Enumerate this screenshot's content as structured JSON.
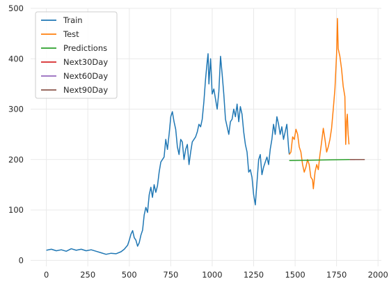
{
  "chart_data": {
    "type": "line",
    "title": "",
    "xlabel": "",
    "ylabel": "",
    "xlim": [
      -95,
      2020
    ],
    "ylim": [
      -12,
      500
    ],
    "x_ticks": [
      0,
      250,
      500,
      750,
      1000,
      1250,
      1500,
      1750,
      2000
    ],
    "y_ticks": [
      0,
      100,
      200,
      300,
      400,
      500
    ],
    "grid": true,
    "legend_position": "top-left",
    "series": [
      {
        "name": "Train",
        "color": "#1f77b4",
        "points": [
          [
            0,
            20
          ],
          [
            30,
            22
          ],
          [
            60,
            19
          ],
          [
            90,
            21
          ],
          [
            120,
            18
          ],
          [
            150,
            23
          ],
          [
            180,
            20
          ],
          [
            210,
            22
          ],
          [
            240,
            19
          ],
          [
            270,
            21
          ],
          [
            300,
            18
          ],
          [
            330,
            15
          ],
          [
            360,
            12
          ],
          [
            390,
            14
          ],
          [
            420,
            13
          ],
          [
            450,
            17
          ],
          [
            470,
            22
          ],
          [
            490,
            30
          ],
          [
            500,
            40
          ],
          [
            510,
            52
          ],
          [
            520,
            59
          ],
          [
            530,
            45
          ],
          [
            540,
            40
          ],
          [
            550,
            28
          ],
          [
            560,
            35
          ],
          [
            570,
            50
          ],
          [
            580,
            60
          ],
          [
            590,
            90
          ],
          [
            600,
            105
          ],
          [
            610,
            95
          ],
          [
            620,
            130
          ],
          [
            630,
            145
          ],
          [
            640,
            125
          ],
          [
            650,
            150
          ],
          [
            660,
            135
          ],
          [
            670,
            148
          ],
          [
            680,
            175
          ],
          [
            690,
            195
          ],
          [
            700,
            200
          ],
          [
            710,
            205
          ],
          [
            720,
            240
          ],
          [
            730,
            220
          ],
          [
            740,
            250
          ],
          [
            750,
            285
          ],
          [
            760,
            295
          ],
          [
            770,
            275
          ],
          [
            780,
            260
          ],
          [
            790,
            225
          ],
          [
            800,
            210
          ],
          [
            810,
            240
          ],
          [
            820,
            235
          ],
          [
            830,
            200
          ],
          [
            840,
            220
          ],
          [
            850,
            230
          ],
          [
            860,
            190
          ],
          [
            870,
            215
          ],
          [
            880,
            235
          ],
          [
            890,
            240
          ],
          [
            900,
            245
          ],
          [
            910,
            255
          ],
          [
            920,
            270
          ],
          [
            930,
            265
          ],
          [
            940,
            280
          ],
          [
            950,
            315
          ],
          [
            960,
            360
          ],
          [
            970,
            395
          ],
          [
            975,
            410
          ],
          [
            980,
            350
          ],
          [
            990,
            400
          ],
          [
            1000,
            330
          ],
          [
            1010,
            340
          ],
          [
            1020,
            320
          ],
          [
            1030,
            300
          ],
          [
            1040,
            335
          ],
          [
            1050,
            405
          ],
          [
            1060,
            370
          ],
          [
            1070,
            330
          ],
          [
            1080,
            280
          ],
          [
            1090,
            265
          ],
          [
            1100,
            250
          ],
          [
            1110,
            275
          ],
          [
            1120,
            280
          ],
          [
            1130,
            300
          ],
          [
            1140,
            285
          ],
          [
            1150,
            310
          ],
          [
            1160,
            275
          ],
          [
            1170,
            305
          ],
          [
            1180,
            290
          ],
          [
            1190,
            255
          ],
          [
            1200,
            230
          ],
          [
            1210,
            215
          ],
          [
            1220,
            175
          ],
          [
            1230,
            180
          ],
          [
            1240,
            165
          ],
          [
            1250,
            130
          ],
          [
            1260,
            110
          ],
          [
            1270,
            155
          ],
          [
            1280,
            200
          ],
          [
            1290,
            210
          ],
          [
            1300,
            170
          ],
          [
            1310,
            185
          ],
          [
            1320,
            195
          ],
          [
            1330,
            205
          ],
          [
            1340,
            190
          ],
          [
            1350,
            220
          ],
          [
            1360,
            240
          ],
          [
            1370,
            270
          ],
          [
            1380,
            250
          ],
          [
            1390,
            285
          ],
          [
            1400,
            270
          ],
          [
            1410,
            250
          ],
          [
            1420,
            265
          ],
          [
            1430,
            240
          ],
          [
            1440,
            255
          ],
          [
            1450,
            270
          ],
          [
            1460,
            225
          ],
          [
            1465,
            210
          ]
        ]
      },
      {
        "name": "Test",
        "color": "#ff7f0e",
        "points": [
          [
            1465,
            210
          ],
          [
            1475,
            215
          ],
          [
            1485,
            245
          ],
          [
            1495,
            240
          ],
          [
            1505,
            260
          ],
          [
            1515,
            250
          ],
          [
            1525,
            225
          ],
          [
            1535,
            215
          ],
          [
            1545,
            190
          ],
          [
            1555,
            175
          ],
          [
            1565,
            185
          ],
          [
            1575,
            200
          ],
          [
            1585,
            190
          ],
          [
            1595,
            165
          ],
          [
            1605,
            160
          ],
          [
            1610,
            142
          ],
          [
            1620,
            175
          ],
          [
            1630,
            190
          ],
          [
            1640,
            180
          ],
          [
            1650,
            210
          ],
          [
            1660,
            235
          ],
          [
            1670,
            262
          ],
          [
            1680,
            240
          ],
          [
            1690,
            215
          ],
          [
            1700,
            225
          ],
          [
            1710,
            240
          ],
          [
            1720,
            262
          ],
          [
            1730,
            300
          ],
          [
            1740,
            340
          ],
          [
            1750,
            410
          ],
          [
            1755,
            480
          ],
          [
            1760,
            420
          ],
          [
            1770,
            405
          ],
          [
            1780,
            380
          ],
          [
            1790,
            345
          ],
          [
            1800,
            325
          ],
          [
            1805,
            230
          ],
          [
            1810,
            275
          ],
          [
            1815,
            290
          ],
          [
            1820,
            250
          ],
          [
            1825,
            230
          ]
        ]
      },
      {
        "name": "Predictions",
        "color": "#2ca02c",
        "points": [
          [
            1465,
            198
          ],
          [
            1830,
            200
          ]
        ]
      },
      {
        "name": "Next30Day",
        "color": "#d62728",
        "points": [
          [
            1830,
            200
          ],
          [
            1860,
            200
          ]
        ]
      },
      {
        "name": "Next60Day",
        "color": "#9467bd",
        "points": [
          [
            1830,
            200
          ],
          [
            1890,
            200
          ]
        ]
      },
      {
        "name": "Next90Day",
        "color": "#8c564b",
        "points": [
          [
            1830,
            200
          ],
          [
            1920,
            200
          ]
        ]
      }
    ]
  }
}
